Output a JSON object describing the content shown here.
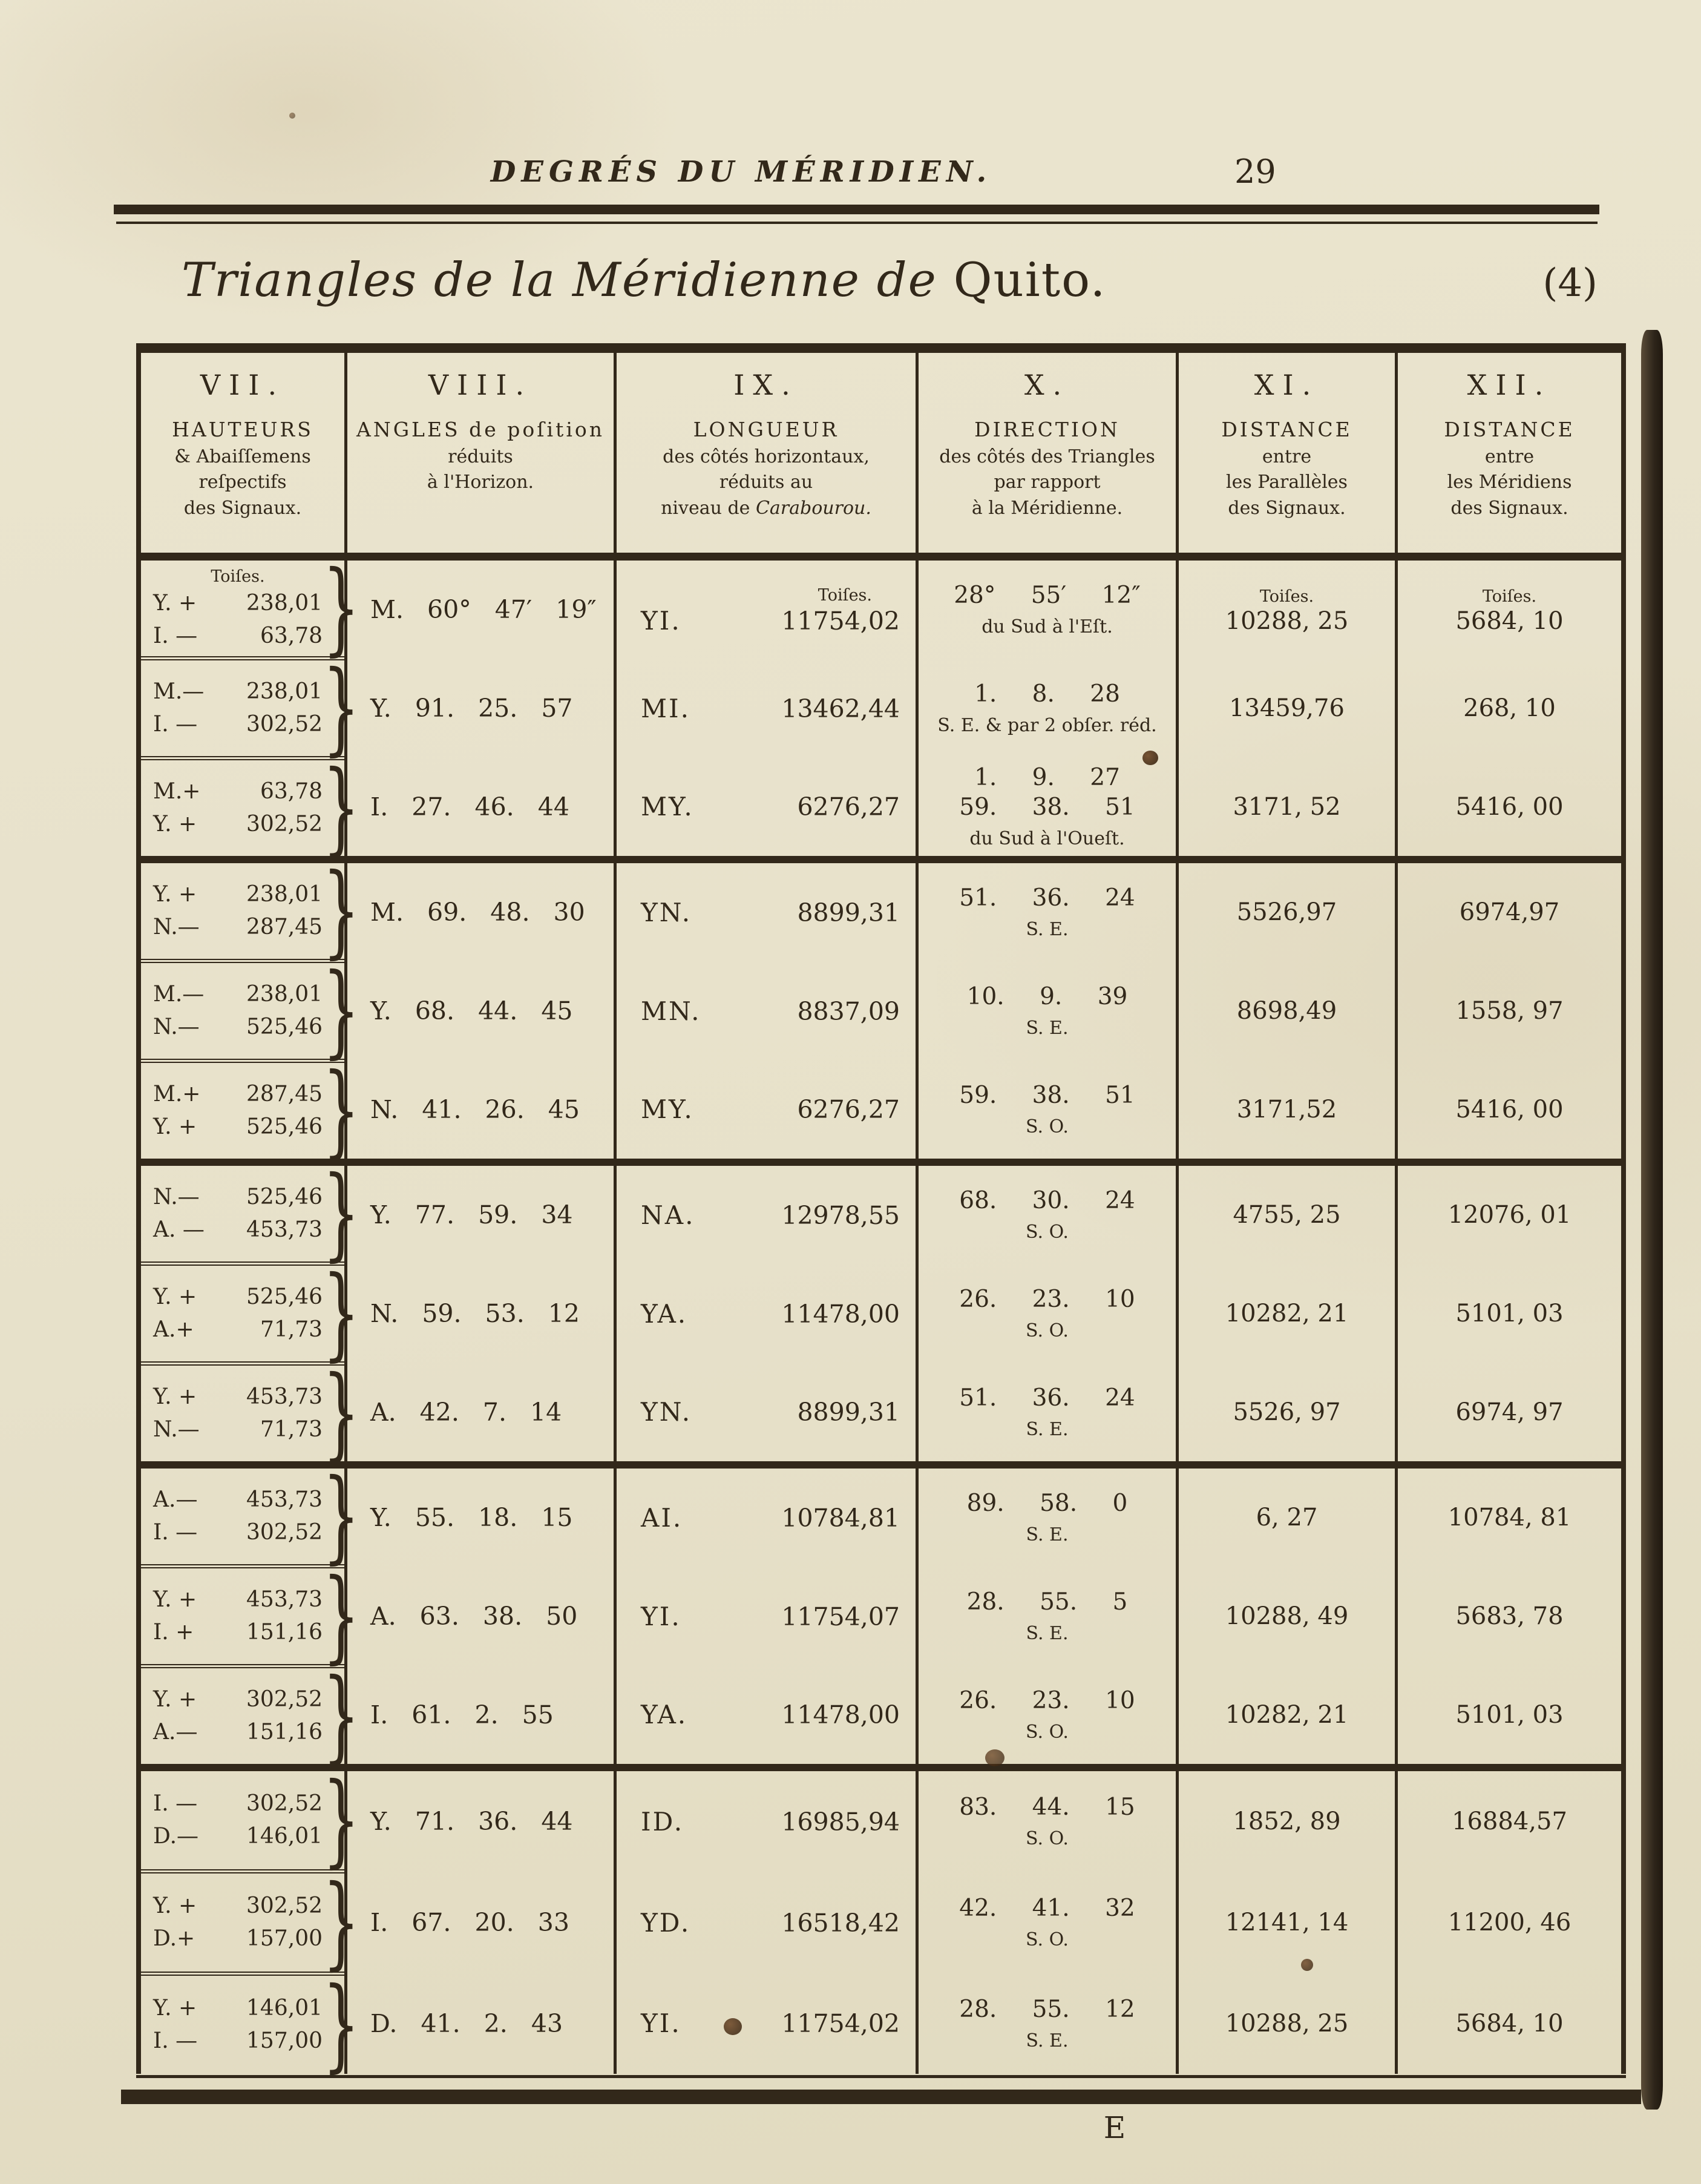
{
  "page": {
    "running_header": "DEGRÉS DU MÉRIDIEN.",
    "page_number": "29",
    "title_italic": "Triangles de la Méridienne de ",
    "title_roman": "Quito.",
    "plate_number": "(4)",
    "signature_mark": "E",
    "unit_label": "Toiſes.",
    "brace_glyph": "}"
  },
  "colors": {
    "paper": "#e8e2cb",
    "ink": "#32281a"
  },
  "table": {
    "columns": [
      {
        "numeral": "VII.",
        "lines": [
          "HAUTEURS",
          "& Abaiſſemens",
          "reſpectifs",
          "des Signaux."
        ]
      },
      {
        "numeral": "VIII.",
        "lines": [
          "ANGLES de poſition",
          "réduits",
          "à l'Horizon."
        ]
      },
      {
        "numeral": "IX.",
        "lines": [
          "LONGUEUR",
          "des côtés horizontaux,",
          "réduits au"
        ],
        "tail_roman": "niveau de ",
        "tail_italic": "Carabourou."
      },
      {
        "numeral": "X.",
        "lines": [
          "DIRECTION",
          "des côtés des Triangles",
          "par rapport",
          "à la Méridienne."
        ]
      },
      {
        "numeral": "XI.",
        "lines": [
          "DISTANCE",
          "entre",
          "les Parallèles",
          "des Signaux."
        ]
      },
      {
        "numeral": "XII.",
        "lines": [
          "DISTANCE",
          "entre",
          "les Méridiens",
          "des Signaux."
        ]
      }
    ],
    "blocks": [
      {
        "rows": [
          {
            "heights": [
              [
                "Y. +",
                "238,01"
              ],
              [
                "I. —",
                "63,78"
              ]
            ],
            "angle": "M. 60° 47′ 19″",
            "side": "YI.",
            "length": "11754,02",
            "direction": [
              "28° 55′ 12″",
              "du Sud à l'Eſt."
            ],
            "parallel": "10288, 25",
            "meridian": "5684, 10"
          },
          {
            "heights": [
              [
                "M.—",
                "238,01"
              ],
              [
                "I. —",
                "302,52"
              ]
            ],
            "angle": "Y. 91. 25. 57",
            "side": "MI.",
            "length": "13462,44",
            "direction": [
              "1. 8. 28",
              "S. E. & par 2 obſer. réd."
            ],
            "parallel": "13459,76",
            "meridian": "268, 10"
          },
          {
            "heights": [
              [
                "M.+",
                "63,78"
              ],
              [
                "Y. +",
                "302,52"
              ]
            ],
            "angle": "I. 27. 46. 44",
            "side": "MY.",
            "length": "6276,27",
            "direction": [
              "1. 9. 27",
              "59. 38. 51",
              "du Sud à l'Oueſt."
            ],
            "parallel": "3171, 52",
            "meridian": "5416, 00"
          }
        ]
      },
      {
        "rows": [
          {
            "heights": [
              [
                "Y. +",
                "238,01"
              ],
              [
                "N.—",
                "287,45"
              ]
            ],
            "angle": "M. 69. 48. 30",
            "side": "YN.",
            "length": "8899,31",
            "direction": [
              "51. 36. 24",
              "S. E."
            ],
            "parallel": "5526,97",
            "meridian": "6974,97"
          },
          {
            "heights": [
              [
                "M.—",
                "238,01"
              ],
              [
                "N.—",
                "525,46"
              ]
            ],
            "angle": "Y. 68. 44. 45",
            "side": "MN.",
            "length": "8837,09",
            "direction": [
              "10. 9. 39",
              "S. E."
            ],
            "parallel": "8698,49",
            "meridian": "1558, 97"
          },
          {
            "heights": [
              [
                "M.+",
                "287,45"
              ],
              [
                "Y. +",
                "525,46"
              ]
            ],
            "angle": "N. 41. 26. 45",
            "side": "MY.",
            "length": "6276,27",
            "direction": [
              "59. 38. 51",
              "S. O."
            ],
            "parallel": "3171,52",
            "meridian": "5416, 00"
          }
        ]
      },
      {
        "rows": [
          {
            "heights": [
              [
                "N.—",
                "525,46"
              ],
              [
                "A. —",
                "453,73"
              ]
            ],
            "angle": "Y. 77. 59. 34",
            "side": "NA.",
            "length": "12978,55",
            "direction": [
              "68. 30. 24",
              "S. O."
            ],
            "parallel": "4755, 25",
            "meridian": "12076, 01"
          },
          {
            "heights": [
              [
                "Y. +",
                "525,46"
              ],
              [
                "A.+",
                "71,73"
              ]
            ],
            "angle": "N. 59. 53. 12",
            "side": "YA.",
            "length": "11478,00",
            "direction": [
              "26. 23. 10",
              "S. O."
            ],
            "parallel": "10282, 21",
            "meridian": "5101, 03"
          },
          {
            "heights": [
              [
                "Y. +",
                "453,73"
              ],
              [
                "N.—",
                "71,73"
              ]
            ],
            "angle": "A. 42. 7. 14",
            "side": "YN.",
            "length": "8899,31",
            "direction": [
              "51. 36. 24",
              "S. E."
            ],
            "parallel": "5526, 97",
            "meridian": "6974, 97"
          }
        ]
      },
      {
        "rows": [
          {
            "heights": [
              [
                "A.—",
                "453,73"
              ],
              [
                "I. —",
                "302,52"
              ]
            ],
            "angle": "Y. 55. 18. 15",
            "side": "AI.",
            "length": "10784,81",
            "direction": [
              "89. 58. 0",
              "S. E."
            ],
            "parallel": "6, 27",
            "meridian": "10784, 81"
          },
          {
            "heights": [
              [
                "Y. +",
                "453,73"
              ],
              [
                "I. +",
                "151,16"
              ]
            ],
            "angle": "A. 63. 38. 50",
            "side": "YI.",
            "length": "11754,07",
            "direction": [
              "28. 55. 5",
              "S. E."
            ],
            "parallel": "10288, 49",
            "meridian": "5683, 78"
          },
          {
            "heights": [
              [
                "Y. +",
                "302,52"
              ],
              [
                "A.—",
                "151,16"
              ]
            ],
            "angle": "I. 61. 2. 55",
            "side": "YA.",
            "length": "11478,00",
            "direction": [
              "26. 23. 10",
              "S. O."
            ],
            "parallel": "10282, 21",
            "meridian": "5101, 03"
          }
        ]
      },
      {
        "rows": [
          {
            "heights": [
              [
                "I. —",
                "302,52"
              ],
              [
                "D.—",
                "146,01"
              ]
            ],
            "angle": "Y. 71. 36. 44",
            "side": "ID.",
            "length": "16985,94",
            "direction": [
              "83. 44. 15",
              "S. O."
            ],
            "parallel": "1852, 89",
            "meridian": "16884,57"
          },
          {
            "heights": [
              [
                "Y. +",
                "302,52"
              ],
              [
                "D.+",
                "157,00"
              ]
            ],
            "angle": "I. 67. 20. 33",
            "side": "YD.",
            "length": "16518,42",
            "direction": [
              "42. 41. 32",
              "S. O."
            ],
            "parallel": "12141, 14",
            "meridian": "11200, 46"
          },
          {
            "heights": [
              [
                "Y. +",
                "146,01"
              ],
              [
                "I. —",
                "157,00"
              ]
            ],
            "angle": "D. 41. 2. 43",
            "side": "YI.",
            "length": "11754,02",
            "direction": [
              "28. 55. 12",
              "S. E."
            ],
            "parallel": "10288, 25",
            "meridian": "5684, 10"
          }
        ]
      }
    ]
  }
}
